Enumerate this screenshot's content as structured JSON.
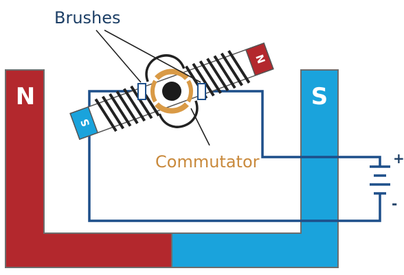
{
  "labels": {
    "brushes": "Brushes",
    "commutator": "Commutator",
    "north": "N",
    "south": "S",
    "rotor_north": "N",
    "rotor_south": "S",
    "plus": "+",
    "minus": "-"
  },
  "colors": {
    "north_magnet": "#b3282d",
    "south_magnet": "#1aa3dc",
    "wire": "#1d4f8a",
    "commutator": "#d99a46",
    "coil": "#222222",
    "label_dark": "#1d3f66",
    "label_orange": "#c98a3d",
    "outline": "#555555"
  }
}
